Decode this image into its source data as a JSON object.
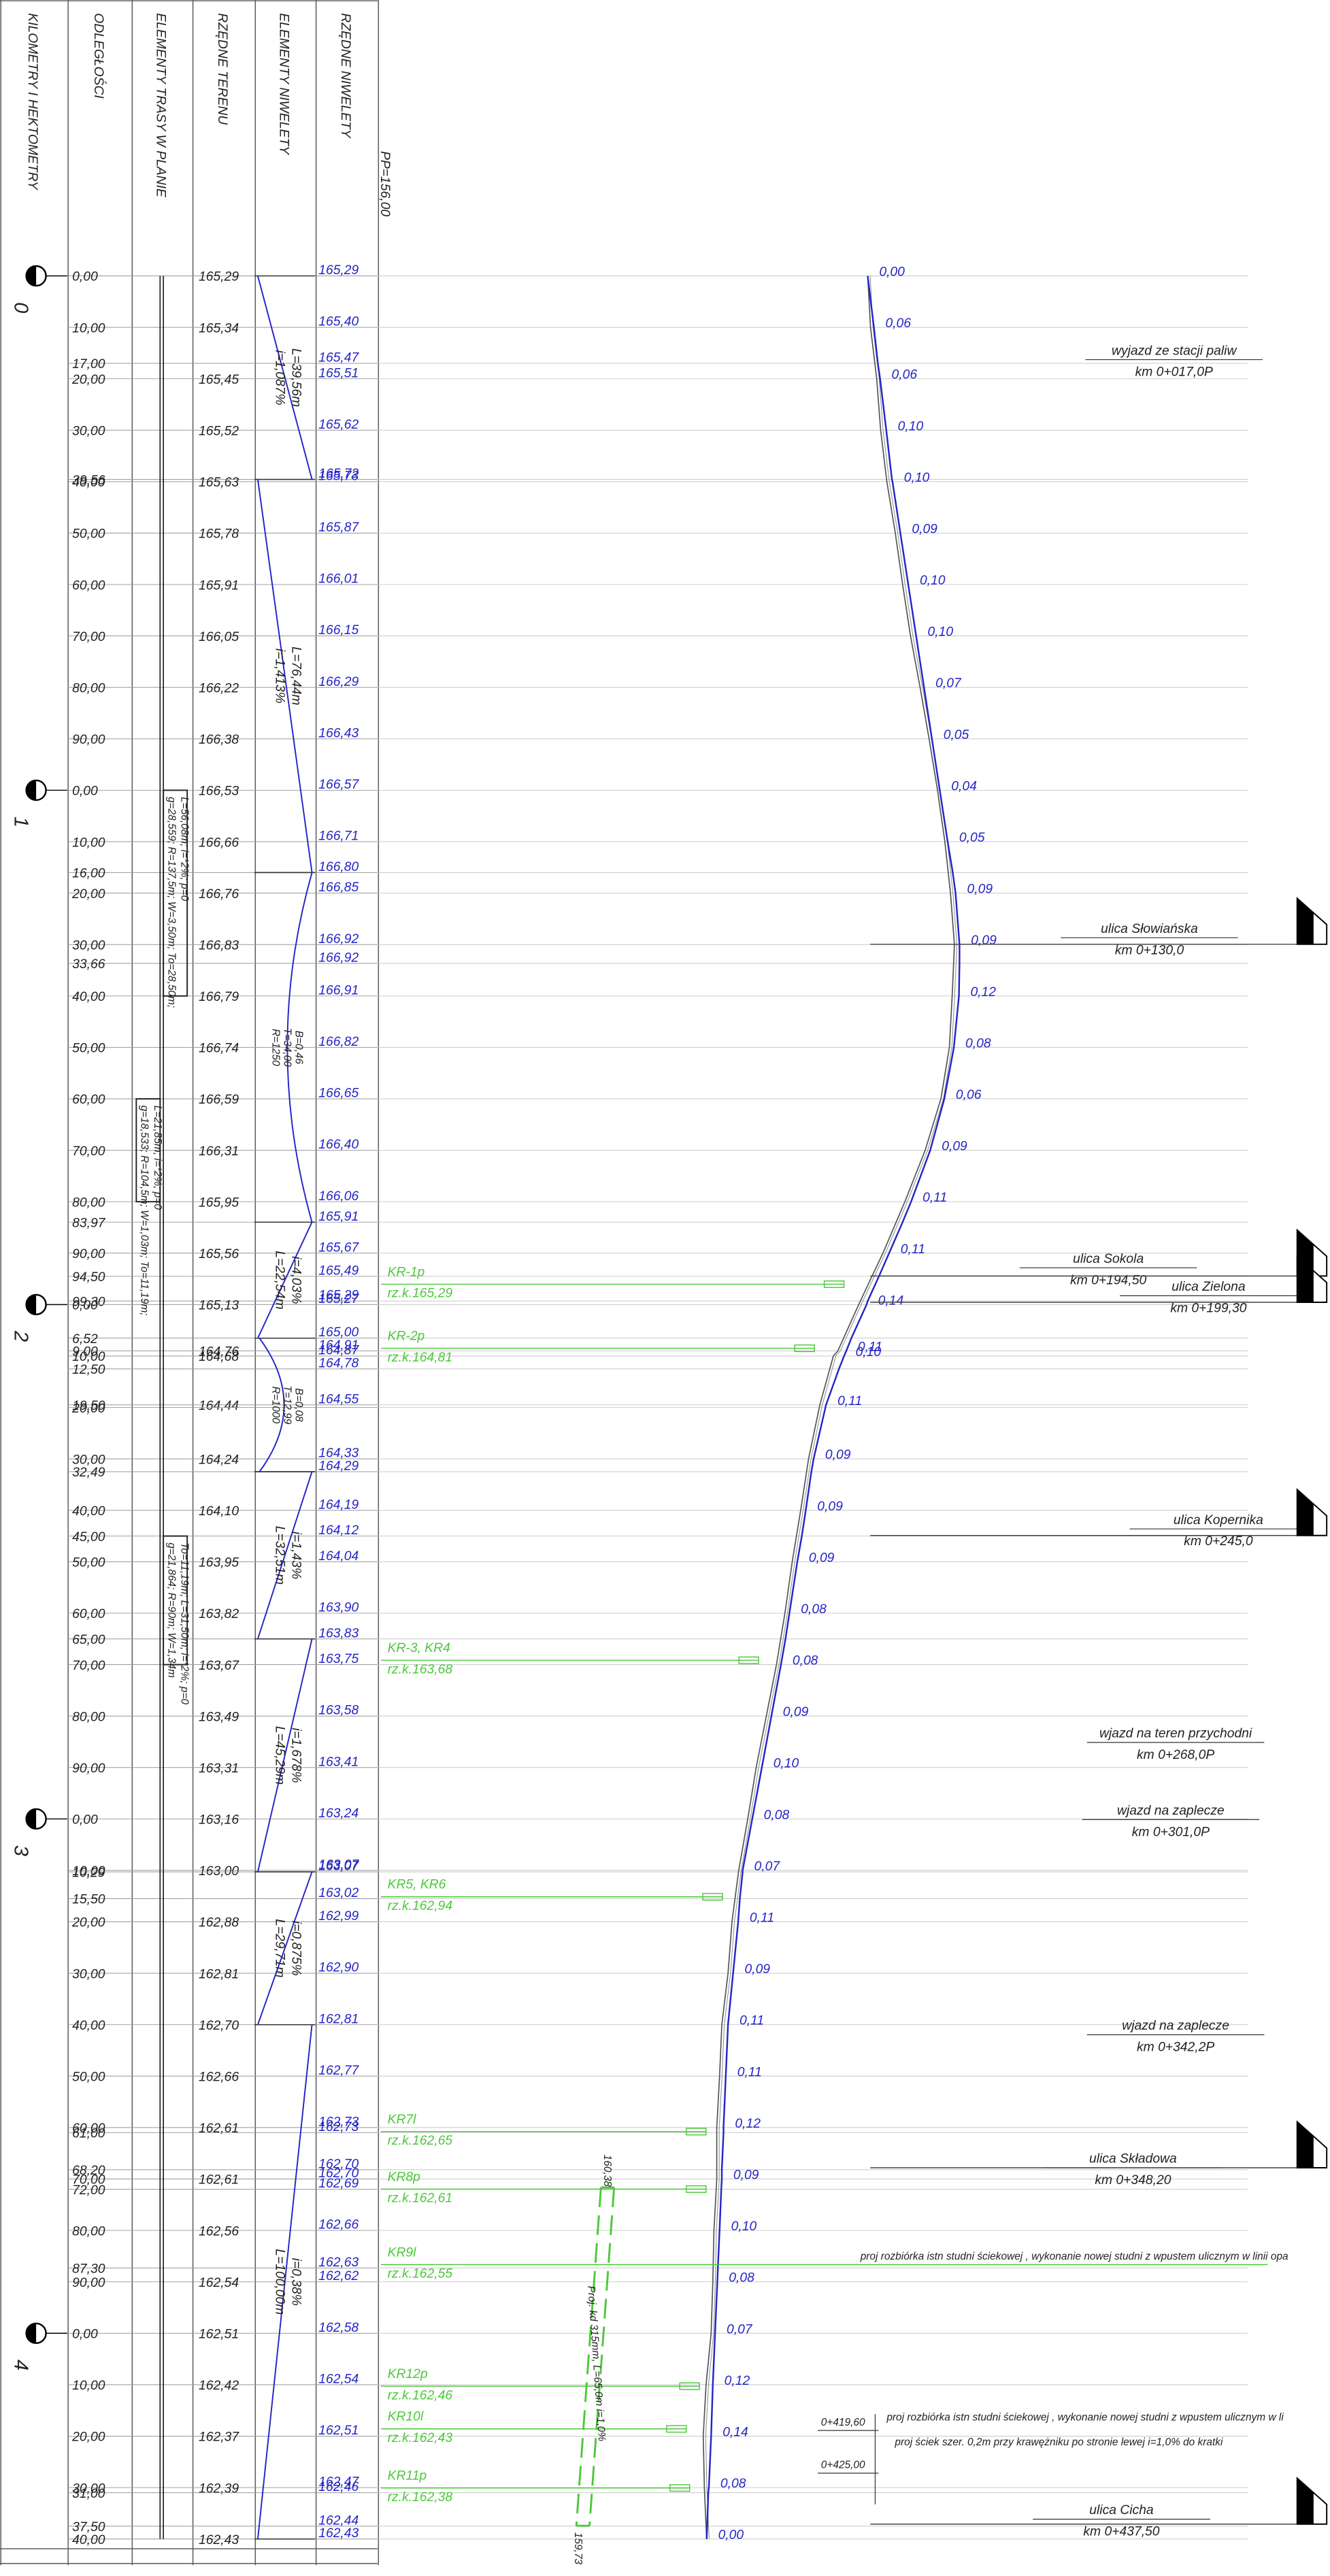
{
  "header": {
    "columns": [
      "KILOMETRY I HEKTOMETRY",
      "ODLEGŁOŚCI",
      "ELEMENTY TRASY W PLANIE",
      "RZĘDNE TERENU",
      "ELEMENTY NIWELETY",
      "RZĘDNE NIWELETY"
    ],
    "reference": "PP=156,00"
  },
  "hectometers": [
    "0",
    "1",
    "2",
    "3",
    "4"
  ],
  "rows": [
    {
      "distance": "0,00",
      "terrain": "165,29",
      "grade": "165,29",
      "difference": "0,00"
    },
    {
      "distance": "10,00",
      "terrain": "165,34",
      "grade": "165,40",
      "difference": "0,06"
    },
    {
      "distance": "17,00",
      "grade": "165,47"
    },
    {
      "distance": "20,00",
      "terrain": "165,45",
      "grade": "165,51",
      "difference": "0,06"
    },
    {
      "distance": "30,00",
      "terrain": "165,52",
      "grade": "165,62",
      "difference": "0,10"
    },
    {
      "distance": "39,56",
      "grade": "165,72"
    },
    {
      "distance": "40,00",
      "terrain": "165,63",
      "grade": "165,73",
      "difference": "0,10"
    },
    {
      "distance": "50,00",
      "terrain": "165,78",
      "grade": "165,87",
      "difference": "0,09"
    },
    {
      "distance": "60,00",
      "terrain": "165,91",
      "grade": "166,01",
      "difference": "0,10"
    },
    {
      "distance": "70,00",
      "terrain": "166,05",
      "grade": "166,15",
      "difference": "0,10"
    },
    {
      "distance": "80,00",
      "terrain": "166,22",
      "grade": "166,29",
      "difference": "0,07"
    },
    {
      "distance": "90,00",
      "terrain": "166,38",
      "grade": "166,43",
      "difference": "0,05"
    },
    {
      "distance": "0,00",
      "terrain": "166,53",
      "grade": "166,57",
      "difference": "0,04"
    },
    {
      "distance": "10,00",
      "terrain": "166,66",
      "grade": "166,71",
      "difference": "0,05"
    },
    {
      "distance": "16,00",
      "grade": "166,80"
    },
    {
      "distance": "20,00",
      "terrain": "166,76",
      "grade": "166,85",
      "difference": "0,09"
    },
    {
      "distance": "30,00",
      "terrain": "166,83",
      "grade": "166,92",
      "difference": "0,09"
    },
    {
      "distance": "33,66",
      "grade": "166,92"
    },
    {
      "distance": "40,00",
      "terrain": "166,79",
      "grade": "166,91",
      "difference": "0,12"
    },
    {
      "distance": "50,00",
      "terrain": "166,74",
      "grade": "166,82",
      "difference": "0,08"
    },
    {
      "distance": "60,00",
      "terrain": "166,59",
      "grade": "166,65",
      "difference": "0,06"
    },
    {
      "distance": "70,00",
      "terrain": "166,31",
      "grade": "166,40",
      "difference": "0,09"
    },
    {
      "distance": "80,00",
      "terrain": "165,95",
      "grade": "166,06",
      "difference": "0,11"
    },
    {
      "distance": "83,97",
      "grade": "165,91"
    },
    {
      "distance": "90,00",
      "terrain": "165,56",
      "grade": "165,67",
      "difference": "0,11"
    },
    {
      "distance": "94,50",
      "grade": "165,49"
    },
    {
      "distance": "99,30",
      "grade": "165,29"
    },
    {
      "distance": "0,00",
      "terrain": "165,13",
      "grade": "165,27",
      "difference": "0,14"
    },
    {
      "distance": "6,52",
      "grade": "165,00"
    },
    {
      "distance": "9,00",
      "terrain": "164,76",
      "grade": "164,91",
      "difference": "0,11"
    },
    {
      "distance": "10,00",
      "terrain": "164,68",
      "grade": "164,87",
      "difference": "0,10"
    },
    {
      "distance": "12,50",
      "grade": "164,78"
    },
    {
      "distance": "19,50",
      "terrain": "164,44",
      "grade": "164,55",
      "difference": "0,11"
    },
    {
      "distance": "20,00"
    },
    {
      "distance": "30,00",
      "terrain": "164,24",
      "grade": "164,33",
      "difference": "0,09"
    },
    {
      "distance": "32,49",
      "grade": "164,29"
    },
    {
      "distance": "40,00",
      "terrain": "164,10",
      "grade": "164,19",
      "difference": "0,09"
    },
    {
      "distance": "45,00",
      "grade": "164,12"
    },
    {
      "distance": "50,00",
      "terrain": "163,95",
      "grade": "164,04",
      "difference": "0,09"
    },
    {
      "distance": "60,00",
      "terrain": "163,82",
      "grade": "163,90",
      "difference": "0,08"
    },
    {
      "distance": "65,00",
      "grade": "163,83"
    },
    {
      "distance": "70,00",
      "terrain": "163,67",
      "grade": "163,75",
      "difference": "0,08"
    },
    {
      "distance": "80,00",
      "terrain": "163,49",
      "grade": "163,58",
      "difference": "0,09"
    },
    {
      "distance": "90,00",
      "terrain": "163,31",
      "grade": "163,41",
      "difference": "0,10"
    },
    {
      "distance": "0,00",
      "terrain": "163,16",
      "grade": "163,24",
      "difference": "0,08"
    },
    {
      "distance": "10,00",
      "terrain": "163,00",
      "grade": "163,07",
      "difference": "0,07"
    },
    {
      "distance": "10,29",
      "grade": "163,07"
    },
    {
      "distance": "15,50",
      "grade": "163,02"
    },
    {
      "distance": "20,00",
      "terrain": "162,88",
      "grade": "162,99",
      "difference": "0,11"
    },
    {
      "distance": "30,00",
      "terrain": "162,81",
      "grade": "162,90",
      "difference": "0,09"
    },
    {
      "distance": "40,00",
      "terrain": "162,70",
      "grade": "162,81",
      "difference": "0,11"
    },
    {
      "distance": "50,00",
      "terrain": "162,66",
      "grade": "162,77",
      "difference": "0,11"
    },
    {
      "distance": "60,00",
      "terrain": "162,61",
      "grade": "162,73",
      "difference": "0,12"
    },
    {
      "distance": "61,00",
      "grade": "162,73"
    },
    {
      "distance": "68,20",
      "grade": "162,70"
    },
    {
      "distance": "70,00",
      "terrain": "162,61",
      "grade": "162,70",
      "difference": "0,09"
    },
    {
      "distance": "72,00",
      "grade": "162,69"
    },
    {
      "distance": "80,00",
      "terrain": "162,56",
      "grade": "162,66",
      "difference": "0,10"
    },
    {
      "distance": "87,30",
      "grade": "162,63"
    },
    {
      "distance": "90,00",
      "terrain": "162,54",
      "grade": "162,62",
      "difference": "0,08"
    },
    {
      "distance": "0,00",
      "terrain": "162,51",
      "grade": "162,58",
      "difference": "0,07"
    },
    {
      "distance": "10,00",
      "terrain": "162,42",
      "grade": "162,54",
      "difference": "0,12"
    },
    {
      "distance": "20,00",
      "terrain": "162,37",
      "grade": "162,51",
      "difference": "0,14"
    },
    {
      "distance": "30,00",
      "terrain": "162,39",
      "grade": "162,47",
      "difference": "0,08"
    },
    {
      "distance": "31,00",
      "grade": "162,46"
    },
    {
      "distance": "37,50",
      "grade": "162,44"
    },
    {
      "distance": "40,00",
      "terrain": "162,43",
      "grade": "162,43",
      "difference": "0,00"
    }
  ],
  "grade_elements": [
    {
      "lines": [
        "i=1,087%",
        "L=39,56m"
      ]
    },
    {
      "lines": [
        "i=1,413%",
        "L=76,44m"
      ]
    },
    {
      "lines": [
        "R=1250",
        "T=34,00",
        "B=0,46"
      ]
    },
    {
      "lines": [
        "L=22,54m",
        "i=4,03%"
      ]
    },
    {
      "lines": [
        "R=1000",
        "T=12,99",
        "B=0,08"
      ]
    },
    {
      "lines": [
        "L=32,51m",
        "i=1,43%"
      ]
    },
    {
      "lines": [
        "L=45,29m",
        "i=1,678%"
      ]
    },
    {
      "lines": [
        "L=29,71m",
        "i=0,875%"
      ]
    },
    {
      "lines": [
        "L=100,00m",
        "i=0,38%"
      ]
    }
  ],
  "plan_elements": [
    {
      "lines": [
        "g=28,559; R=137,5m; W=3,50m; To=28,50m;",
        "L=56,08m; i=*2%; p=0"
      ]
    },
    {
      "lines": [
        "g=18,533; R=104,5m; W=1,03m; To=11,19m;",
        "L=21,85m; i=*2%; p=0"
      ]
    },
    {
      "lines": [
        "g=21,864; R=90m; W=1,34m",
        "To=11,19m; L=31,50m; i=*2%; p=0"
      ]
    }
  ],
  "drainage": [
    {
      "label": "KR-1p",
      "level": "rz.k.165,29"
    },
    {
      "label": "KR-2p",
      "level": "rz.k.164,81"
    },
    {
      "label": "KR-3, KR4",
      "level": "rz.k.163,68"
    },
    {
      "label": "KR5, KR6",
      "level": "rz.k.162,94"
    },
    {
      "label": "KR7l",
      "level": "rz.k.162,65"
    },
    {
      "label": "KR8p",
      "level": "rz.k.162,61"
    },
    {
      "label": "KR9l",
      "level": "rz.k.162,55"
    },
    {
      "label": "KR12p",
      "level": "rz.k.162,46"
    },
    {
      "label": "KR10l",
      "level": "rz.k.162,43"
    },
    {
      "label": "KR11p",
      "level": "rz.k.162,38"
    }
  ],
  "annotations": [
    {
      "title": "wyjazd ze stacji paliw",
      "station": "km 0+017,0P"
    },
    {
      "title": "ulica Słowiańska",
      "station": "km 0+130,0"
    },
    {
      "title": "ulica Sokola",
      "station": "km 0+194,50"
    },
    {
      "title": "ulica Zielona",
      "station": "km 0+199,30"
    },
    {
      "title": "ulica Kopernika",
      "station": "km 0+245,0"
    },
    {
      "title": "wjazd na teren przychodni",
      "station": "km 0+268,0P"
    },
    {
      "title": "wjazd na zaplecze",
      "station": "km 0+301,0P"
    },
    {
      "title": "wjazd na zaplecze",
      "station": "km 0+342,2P"
    },
    {
      "title": "ulica Składowa",
      "station": "km 0+348,20"
    },
    {
      "title": "ulica Cicha",
      "station": "km 0+437,50"
    }
  ],
  "notes": [
    "proj rozbiórka istn studni ściekowej , wykonanie nowej studni z wpustem ulicznym w linii opa",
    "proj rozbiórka istn studni ściekowej , wykonanie nowej studni z wpustem ulicznym w li",
    "proj ściek szer. 0,2m przy krawężniku po stronie lewej i=1,0% do kratki"
  ],
  "note_stations": [
    "0+419,60",
    "0+425,00"
  ],
  "pipe": {
    "top": "160,38",
    "label": "Proj. kd 315mm, L=65,0m i=1,0%",
    "bottom": "159,73"
  }
}
